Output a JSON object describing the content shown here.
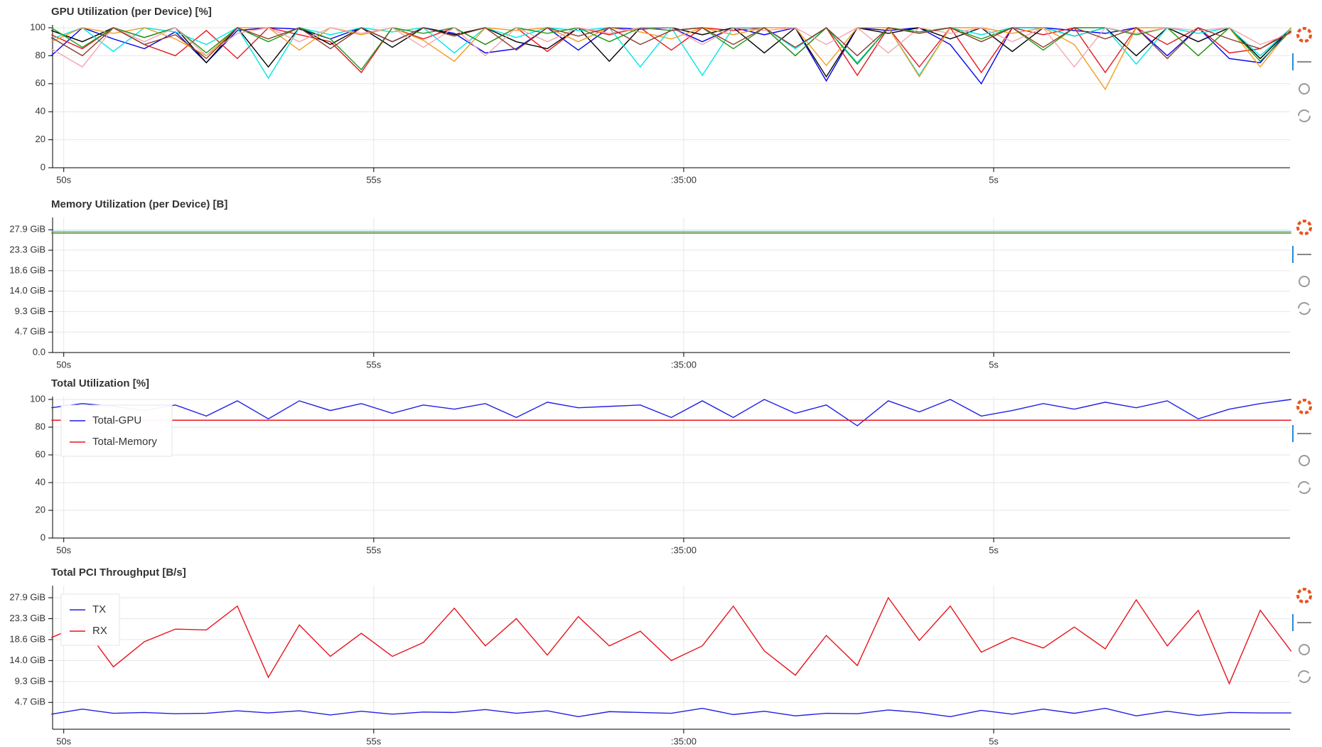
{
  "chart_data": [
    {
      "type": "line",
      "title": "GPU Utilization (per Device) [%]",
      "x": [
        49.8,
        50.3,
        50.8,
        51.3,
        51.8,
        52.3,
        52.8,
        53.3,
        53.8,
        54.3,
        54.8,
        55.3,
        55.8,
        56.3,
        56.8,
        57.3,
        57.8,
        58.3,
        58.8,
        59.3,
        59.8,
        60.3,
        60.8,
        61.3,
        61.8,
        62.3,
        62.8,
        63.3,
        63.8,
        64.3,
        64.8,
        65.3,
        65.8,
        66.3,
        66.8,
        67.3,
        67.8,
        68.3,
        68.8,
        69.3,
        69.8
      ],
      "xlim": [
        49.82,
        69.78
      ],
      "xticks": [
        {
          "value": 50,
          "label": "50s"
        },
        {
          "value": 55,
          "label": "55s"
        },
        {
          "value": 60,
          "label": ":35:00"
        },
        {
          "value": 65,
          "label": "5s"
        }
      ],
      "ylim": [
        0,
        100
      ],
      "yticks": [
        0,
        20,
        40,
        60,
        80,
        100
      ],
      "grid": true,
      "series": [
        {
          "color": "#0000ee",
          "values": [
            80,
            100,
            92,
            85,
            97,
            75,
            98,
            100,
            99,
            92,
            100,
            90,
            100,
            96,
            82,
            85,
            100,
            84,
            100,
            99,
            100,
            90,
            100,
            95,
            100,
            62,
            100,
            98,
            100,
            88,
            60,
            100,
            100,
            98,
            96,
            100,
            80,
            100,
            78,
            75,
            100
          ]
        },
        {
          "color": "#e8141c",
          "values": [
            95,
            85,
            100,
            88,
            80,
            98,
            78,
            100,
            95,
            90,
            68,
            100,
            92,
            100,
            88,
            100,
            83,
            100,
            95,
            100,
            84,
            100,
            98,
            100,
            80,
            100,
            66,
            100,
            72,
            100,
            68,
            100,
            95,
            100,
            68,
            100,
            88,
            100,
            82,
            85,
            98
          ]
        },
        {
          "color": "#000000",
          "values": [
            98,
            90,
            100,
            93,
            100,
            75,
            100,
            72,
            100,
            88,
            100,
            86,
            100,
            95,
            100,
            90,
            85,
            100,
            76,
            100,
            100,
            95,
            100,
            82,
            100,
            65,
            100,
            96,
            100,
            92,
            100,
            83,
            100,
            94,
            100,
            80,
            100,
            90,
            100,
            78,
            100
          ]
        },
        {
          "color": "#00e5e5",
          "values": [
            92,
            100,
            83,
            100,
            97,
            88,
            100,
            64,
            100,
            95,
            100,
            97,
            100,
            82,
            100,
            93,
            100,
            98,
            100,
            72,
            100,
            66,
            100,
            100,
            85,
            100,
            75,
            100,
            66,
            100,
            95,
            100,
            100,
            94,
            100,
            74,
            100,
            96,
            100,
            80,
            100
          ]
        },
        {
          "color": "#f39c1f",
          "values": [
            90,
            100,
            96,
            100,
            92,
            80,
            100,
            100,
            84,
            100,
            95,
            100,
            91,
            76,
            100,
            98,
            100,
            90,
            100,
            97,
            92,
            100,
            95,
            100,
            100,
            73,
            100,
            100,
            65,
            100,
            100,
            96,
            100,
            88,
            56,
            100,
            100,
            80,
            100,
            72,
            100
          ]
        },
        {
          "color": "#1a9a1a",
          "values": [
            100,
            86,
            100,
            93,
            100,
            82,
            100,
            90,
            100,
            92,
            70,
            100,
            96,
            100,
            88,
            100,
            96,
            100,
            90,
            100,
            98,
            100,
            85,
            100,
            80,
            100,
            74,
            100,
            97,
            100,
            92,
            100,
            84,
            100,
            100,
            95,
            100,
            80,
            100,
            76,
            98
          ]
        },
        {
          "color": "#f4a6b0",
          "values": [
            85,
            72,
            100,
            90,
            100,
            80,
            96,
            100,
            90,
            100,
            96,
            100,
            86,
            100,
            80,
            100,
            90,
            100,
            96,
            100,
            100,
            88,
            100,
            98,
            100,
            88,
            100,
            82,
            100,
            96,
            100,
            90,
            100,
            72,
            100,
            96,
            100,
            98,
            100,
            88,
            96
          ]
        },
        {
          "color": "#8b3a2a",
          "values": [
            93,
            80,
            100,
            88,
            95,
            78,
            100,
            92,
            100,
            85,
            100,
            90,
            100,
            94,
            100,
            84,
            100,
            94,
            100,
            88,
            98,
            100,
            88,
            100,
            86,
            100,
            80,
            100,
            96,
            100,
            90,
            100,
            86,
            100,
            92,
            100,
            78,
            100,
            92,
            85,
            97
          ]
        }
      ]
    },
    {
      "type": "line",
      "title": "Memory Utilization (per Device) [B]",
      "x": [
        49.8,
        50.3,
        50.8,
        51.3,
        51.8,
        52.3,
        52.8,
        53.3,
        53.8,
        54.3,
        54.8,
        55.3,
        55.8,
        56.3,
        56.8,
        57.3,
        57.8,
        58.3,
        58.8,
        59.3,
        59.8,
        60.3,
        60.8,
        61.3,
        61.8,
        62.3,
        62.8,
        63.3,
        63.8,
        64.3,
        64.8,
        65.3,
        65.8,
        66.3,
        66.8,
        67.3,
        67.8,
        68.3,
        68.8,
        69.3,
        69.8
      ],
      "xlim": [
        49.82,
        69.78
      ],
      "xticks": [
        {
          "value": 50,
          "label": "50s"
        },
        {
          "value": 55,
          "label": "55s"
        },
        {
          "value": 60,
          "label": ":35:00"
        },
        {
          "value": 65,
          "label": "5s"
        }
      ],
      "ylim": [
        0,
        33000000000.0
      ],
      "yticks": [
        {
          "value": 0,
          "label": "0.0"
        },
        {
          "value": 5000000000.0,
          "label": "4.7 GiB"
        },
        {
          "value": 10000000000.0,
          "label": "9.3 GiB"
        },
        {
          "value": 15000000000.0,
          "label": "14.0 GiB"
        },
        {
          "value": 20000000000.0,
          "label": "18.6 GiB"
        },
        {
          "value": 25000000000.0,
          "label": "23.3 GiB"
        },
        {
          "value": 30000000000.0,
          "label": "27.9 GiB"
        }
      ],
      "grid": true,
      "series": [
        {
          "color": "#00e5e5",
          "values": [
            29600000000.0,
            29600000000.0,
            29600000000.0,
            29600000000.0,
            29600000000.0,
            29600000000.0,
            29600000000.0,
            29600000000.0,
            29600000000.0,
            29600000000.0,
            29600000000.0,
            29600000000.0,
            29600000000.0,
            29600000000.0,
            29600000000.0,
            29600000000.0,
            29600000000.0,
            29600000000.0,
            29600000000.0,
            29600000000.0,
            29600000000.0,
            29600000000.0,
            29600000000.0,
            29600000000.0,
            29600000000.0,
            29600000000.0,
            29600000000.0,
            29600000000.0,
            29600000000.0,
            29600000000.0,
            29600000000.0,
            29600000000.0,
            29600000000.0,
            29600000000.0,
            29600000000.0,
            29600000000.0,
            29600000000.0,
            29600000000.0,
            29600000000.0,
            29600000000.0,
            29600000000.0
          ]
        },
        {
          "color": "#6b7a1a",
          "values": [
            29200000000.0,
            29200000000.0,
            29200000000.0,
            29200000000.0,
            29200000000.0,
            29200000000.0,
            29200000000.0,
            29200000000.0,
            29200000000.0,
            29200000000.0,
            29200000000.0,
            29200000000.0,
            29200000000.0,
            29200000000.0,
            29200000000.0,
            29200000000.0,
            29200000000.0,
            29200000000.0,
            29200000000.0,
            29200000000.0,
            29200000000.0,
            29200000000.0,
            29200000000.0,
            29200000000.0,
            29200000000.0,
            29200000000.0,
            29200000000.0,
            29200000000.0,
            29200000000.0,
            29200000000.0,
            29200000000.0,
            29200000000.0,
            29200000000.0,
            29200000000.0,
            29200000000.0,
            29200000000.0,
            29200000000.0,
            29200000000.0,
            29200000000.0,
            29200000000.0,
            29200000000.0
          ]
        }
      ]
    },
    {
      "type": "line",
      "title": "Total Utilization [%]",
      "x": [
        49.8,
        50.3,
        50.8,
        51.3,
        51.8,
        52.3,
        52.8,
        53.3,
        53.8,
        54.3,
        54.8,
        55.3,
        55.8,
        56.3,
        56.8,
        57.3,
        57.8,
        58.3,
        58.8,
        59.3,
        59.8,
        60.3,
        60.8,
        61.3,
        61.8,
        62.3,
        62.8,
        63.3,
        63.8,
        64.3,
        64.8,
        65.3,
        65.8,
        66.3,
        66.8,
        67.3,
        67.8,
        68.3,
        68.8,
        69.3,
        69.8
      ],
      "xlim": [
        49.82,
        69.78
      ],
      "xticks": [
        {
          "value": 50,
          "label": "50s"
        },
        {
          "value": 55,
          "label": "55s"
        },
        {
          "value": 60,
          "label": ":35:00"
        },
        {
          "value": 65,
          "label": "5s"
        }
      ],
      "ylim": [
        0,
        100
      ],
      "yticks": [
        0,
        20,
        40,
        60,
        80,
        100
      ],
      "grid": true,
      "legend": "top-left",
      "series": [
        {
          "name": "Total-GPU",
          "color": "#1f1fe6",
          "values": [
            94,
            97,
            95,
            92,
            96,
            88,
            99,
            86,
            99,
            92,
            97,
            90,
            96,
            93,
            97,
            87,
            98,
            94,
            95,
            96,
            87,
            99,
            87,
            100,
            90,
            96,
            81,
            99,
            91,
            100,
            88,
            92,
            97,
            93,
            98,
            94,
            99,
            86,
            93,
            97,
            100
          ]
        },
        {
          "name": "Total-Memory",
          "color": "#e8141c",
          "values": [
            85,
            85,
            85,
            85,
            85,
            85,
            85,
            85,
            85,
            85,
            85,
            85,
            85,
            85,
            85,
            85,
            85,
            85,
            85,
            85,
            85,
            85,
            85,
            85,
            85,
            85,
            85,
            85,
            85,
            85,
            85,
            85,
            85,
            85,
            85,
            85,
            85,
            85,
            85,
            85,
            85
          ]
        }
      ]
    },
    {
      "type": "line",
      "title": "Total PCI Throughput [B/s]",
      "x": [
        49.8,
        50.3,
        50.8,
        51.3,
        51.8,
        52.3,
        52.8,
        53.3,
        53.8,
        54.3,
        54.8,
        55.3,
        55.8,
        56.3,
        56.8,
        57.3,
        57.8,
        58.3,
        58.8,
        59.3,
        59.8,
        60.3,
        60.8,
        61.3,
        61.8,
        62.3,
        62.8,
        63.3,
        63.8,
        64.3,
        64.8,
        65.3,
        65.8,
        66.3,
        66.8,
        67.3,
        67.8,
        68.3,
        68.8,
        69.3,
        69.8
      ],
      "xlim": [
        49.82,
        69.78
      ],
      "xticks": [
        {
          "value": 50,
          "label": "50s"
        },
        {
          "value": 55,
          "label": "55s"
        },
        {
          "value": 60,
          "label": ":35:00"
        },
        {
          "value": 65,
          "label": "5s"
        }
      ],
      "ylim": [
        -1400000000.0,
        32200000000.0
      ],
      "yticks": [
        {
          "value": 5000000000.0,
          "label": "4.7 GiB"
        },
        {
          "value": 10000000000.0,
          "label": "9.3 GiB"
        },
        {
          "value": 15000000000.0,
          "label": "14.0 GiB"
        },
        {
          "value": 20000000000.0,
          "label": "18.6 GiB"
        },
        {
          "value": 25000000000.0,
          "label": "23.3 GiB"
        },
        {
          "value": 30000000000.0,
          "label": "27.9 GiB"
        }
      ],
      "grid": true,
      "legend": "top-left",
      "series": [
        {
          "name": "TX",
          "color": "#1f1fe6",
          "values": [
            2200000000.0,
            3400000000.0,
            2400000000.0,
            2600000000.0,
            2300000000.0,
            2400000000.0,
            3000000000.0,
            2500000000.0,
            3000000000.0,
            2000000000.0,
            2900000000.0,
            2200000000.0,
            2700000000.0,
            2600000000.0,
            3300000000.0,
            2400000000.0,
            3000000000.0,
            1600000000.0,
            2800000000.0,
            2600000000.0,
            2400000000.0,
            3600000000.0,
            2100000000.0,
            2900000000.0,
            1800000000.0,
            2400000000.0,
            2300000000.0,
            3200000000.0,
            2600000000.0,
            1600000000.0,
            3100000000.0,
            2200000000.0,
            3400000000.0,
            2400000000.0,
            3600000000.0,
            1800000000.0,
            2900000000.0,
            1900000000.0,
            2600000000.0,
            2500000000.0,
            2500000000.0
          ]
        },
        {
          "name": "RX",
          "color": "#e8141c",
          "values": [
            20500000000.0,
            23500000000.0,
            13500000000.0,
            19500000000.0,
            22500000000.0,
            22300000000.0,
            28000000000.0,
            11000000000.0,
            23500000000.0,
            16000000000.0,
            21500000000.0,
            16000000000.0,
            19300000000.0,
            27500000000.0,
            18500000000.0,
            25000000000.0,
            16300000000.0,
            25500000000.0,
            18500000000.0,
            22000000000.0,
            15000000000.0,
            18500000000.0,
            28000000000.0,
            17300000000.0,
            11500000000.0,
            21000000000.0,
            13800000000.0,
            30000000000.0,
            19800000000.0,
            28000000000.0,
            17000000000.0,
            20500000000.0,
            18000000000.0,
            23000000000.0,
            17800000000.0,
            29500000000.0,
            18500000000.0,
            27000000000.0,
            9500000000.0,
            27000000000.0,
            17200000000.0
          ]
        }
      ]
    }
  ]
}
